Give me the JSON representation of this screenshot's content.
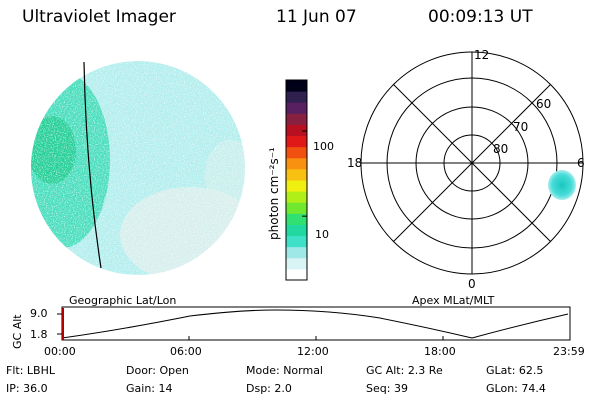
{
  "header": {
    "title": "Ultraviolet Imager",
    "date": "11 Jun 07",
    "time": "00:09:13 UT"
  },
  "colorbar": {
    "label": "photon cm⁻²s⁻¹",
    "ticks": [
      {
        "label": "100",
        "value": 100
      },
      {
        "label": "10",
        "value": 10
      }
    ],
    "colors": [
      "#ffffff",
      "#d8f4f4",
      "#9ee8e8",
      "#3ee0c8",
      "#20d8a0",
      "#30e070",
      "#70e830",
      "#b0f018",
      "#f0f010",
      "#f8c010",
      "#f89010",
      "#f05010",
      "#e01818",
      "#b81020",
      "#882040",
      "#582060",
      "#302050",
      "#000018"
    ]
  },
  "globe_panel": {
    "label": "Geographic Lat/Lon",
    "colors": {
      "base": "#b4eeee",
      "band": "#40dcb8",
      "dark": "#20cc90",
      "faint": "#dcefec"
    }
  },
  "polar_panel": {
    "label": "Apex MLat/MLT",
    "mlt_labels": {
      "top": "12",
      "left": "18",
      "right": "6",
      "bottom": "0"
    },
    "lat_labels": [
      "60",
      "70",
      "80"
    ],
    "blob_color": "#38d8d0"
  },
  "altitude_plot": {
    "ylabel": "GC Alt",
    "yticks": [
      "9.0",
      "1.8"
    ],
    "xticks": [
      "00:00",
      "06:00",
      "12:00",
      "18:00",
      "23:59"
    ],
    "marker_color": "#b00000"
  },
  "info": {
    "row1": [
      {
        "key": "Flt:",
        "value": "LBHL"
      },
      {
        "key": "Door:",
        "value": "Open"
      },
      {
        "key": "Mode:",
        "value": "Normal"
      },
      {
        "key": "GC Alt:",
        "value": "2.3 Re"
      },
      {
        "key": "GLat:",
        "value": "62.5"
      }
    ],
    "row2": [
      {
        "key": "IP:",
        "value": "36.0"
      },
      {
        "key": "Gain:",
        "value": "14"
      },
      {
        "key": "Dsp:",
        "value": "2.0"
      },
      {
        "key": "Seq:",
        "value": "39"
      },
      {
        "key": "GLon:",
        "value": "74.4"
      }
    ]
  }
}
